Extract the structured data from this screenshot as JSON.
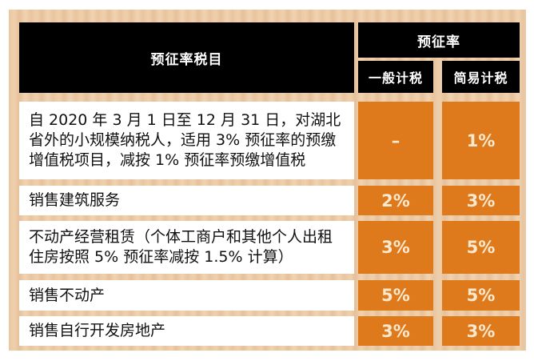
{
  "header": {
    "item_col": "预征率税目",
    "rate_group": "预征率",
    "general": "一般计税",
    "simple": "简易计税"
  },
  "rows": [
    {
      "item": "自 2020 年 3 月 1 日至 12 月 31 日，对湖北省外的小规模纳税人，适用 3% 预征率的预缴增值税项目，减按 1% 预征率预缴增值税",
      "general": "–",
      "simple": "1%"
    },
    {
      "item": "销售建筑服务",
      "general": "2%",
      "simple": "3%"
    },
    {
      "item": "不动产经营租赁（个体工商户和其他个人出租住房按照 5% 预征率减按 1.5% 计算）",
      "general": "3%",
      "simple": "5%"
    },
    {
      "item": "销售不动产",
      "general": "5%",
      "simple": "5%"
    },
    {
      "item": "销售自行开发房地产",
      "general": "3%",
      "simple": "3%"
    }
  ],
  "colors": {
    "header": "#000000",
    "rate_cell": "#df7a1c",
    "panel": "#ecc9a4"
  }
}
